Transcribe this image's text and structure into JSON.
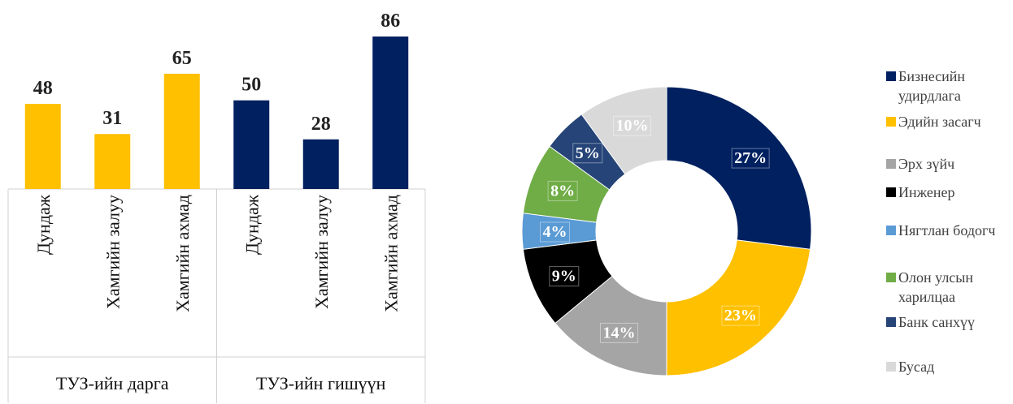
{
  "chart_data": [
    {
      "type": "bar",
      "categories": [
        "Дундаж",
        "Хамгийн залуу",
        "Хамгийн ахмад",
        "Дундаж",
        "Хамгийн залуу",
        "Хамгийн ахмад"
      ],
      "groups": [
        "ТУЗ-ийн дарга",
        "ТУЗ-ийн гишүүн"
      ],
      "values": [
        48,
        31,
        65,
        50,
        28,
        86
      ],
      "colors": [
        "#FFC000",
        "#FFC000",
        "#FFC000",
        "#002060",
        "#002060",
        "#002060"
      ]
    },
    {
      "type": "pie",
      "categories": [
        "Бизнесийн удирдлага",
        "Эдийн засагч",
        "Эрх зүйч",
        "Инженер",
        "Нягтлан бодогч",
        "Олон улсын харилцаа",
        "Банк санхүү",
        "Бусад"
      ],
      "values": [
        27,
        23,
        14,
        9,
        4,
        8,
        5,
        10
      ],
      "value_labels": [
        "27%",
        "23%",
        "14%",
        "9%",
        "4%",
        "8%",
        "5%",
        "10%"
      ],
      "colors": [
        "#002060",
        "#FFC000",
        "#A5A5A5",
        "#000000",
        "#5B9BD5",
        "#70AD47",
        "#264478",
        "#D9D9D9"
      ]
    }
  ]
}
